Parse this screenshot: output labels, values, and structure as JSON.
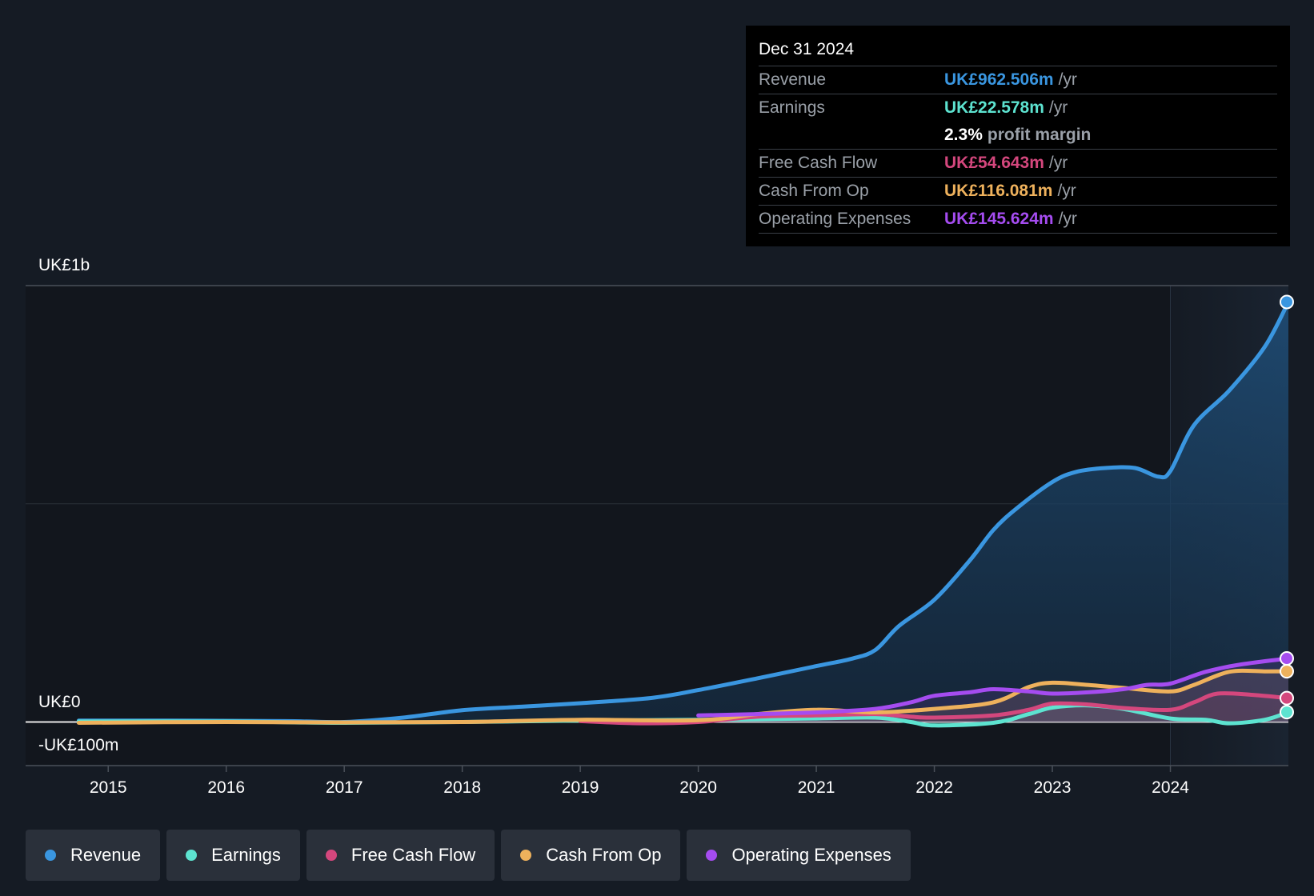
{
  "tooltip": {
    "date": "Dec 31 2024",
    "rows": [
      {
        "label": "Revenue",
        "value": "UK£962.506m",
        "unit": "/yr",
        "color": "#3a96e0"
      },
      {
        "label": "Earnings",
        "value": "UK£22.578m",
        "unit": "/yr",
        "color": "#5de3d0"
      },
      {
        "label": "",
        "value": "2.3%",
        "unit": "profit margin",
        "color": "#ffffff"
      },
      {
        "label": "Free Cash Flow",
        "value": "UK£54.643m",
        "unit": "/yr",
        "color": "#d4477d"
      },
      {
        "label": "Cash From Op",
        "value": "UK£116.081m",
        "unit": "/yr",
        "color": "#eeb15c"
      },
      {
        "label": "Operating Expenses",
        "value": "UK£145.624m",
        "unit": "/yr",
        "color": "#a54cf0"
      }
    ]
  },
  "legend": [
    {
      "label": "Revenue",
      "color": "#3a96e0"
    },
    {
      "label": "Earnings",
      "color": "#5de3d0"
    },
    {
      "label": "Free Cash Flow",
      "color": "#d4477d"
    },
    {
      "label": "Cash From Op",
      "color": "#eeb15c"
    },
    {
      "label": "Operating Expenses",
      "color": "#a54cf0"
    }
  ],
  "chart_data": {
    "type": "line",
    "title": "",
    "y_labels": {
      "top": "UK£1b",
      "zero": "UK£0",
      "bottom": "-UK£100m"
    },
    "ylim": [
      -100,
      1000
    ],
    "xlim": [
      2014.3,
      2025.0
    ],
    "highlight_from": 2024.0,
    "x_ticks": [
      2015,
      2016,
      2017,
      2018,
      2019,
      2020,
      2021,
      2022,
      2023,
      2024
    ],
    "series": [
      {
        "name": "Revenue",
        "color": "#3a96e0",
        "points": [
          [
            2014.75,
            3
          ],
          [
            2015.5,
            3
          ],
          [
            2016.5,
            2
          ],
          [
            2017.0,
            0
          ],
          [
            2017.5,
            10
          ],
          [
            2018.0,
            27
          ],
          [
            2018.5,
            35
          ],
          [
            2019.0,
            43
          ],
          [
            2019.6,
            55
          ],
          [
            2020.0,
            73
          ],
          [
            2020.5,
            100
          ],
          [
            2021.0,
            128
          ],
          [
            2021.3,
            145
          ],
          [
            2021.5,
            165
          ],
          [
            2021.7,
            220
          ],
          [
            2022.0,
            280
          ],
          [
            2022.3,
            370
          ],
          [
            2022.5,
            440
          ],
          [
            2022.7,
            490
          ],
          [
            2023.0,
            550
          ],
          [
            2023.2,
            573
          ],
          [
            2023.45,
            582
          ],
          [
            2023.7,
            582
          ],
          [
            2023.9,
            562
          ],
          [
            2024.0,
            575
          ],
          [
            2024.2,
            680
          ],
          [
            2024.5,
            760
          ],
          [
            2024.8,
            860
          ],
          [
            2025.0,
            962.5
          ]
        ]
      },
      {
        "name": "Earnings",
        "color": "#5de3d0",
        "points": [
          [
            2014.75,
            1
          ],
          [
            2016.0,
            1
          ],
          [
            2017.0,
            -2
          ],
          [
            2018.0,
            0
          ],
          [
            2019.0,
            3
          ],
          [
            2020.0,
            5
          ],
          [
            2021.0,
            8
          ],
          [
            2021.5,
            10
          ],
          [
            2021.8,
            0
          ],
          [
            2022.0,
            -8
          ],
          [
            2022.5,
            -2
          ],
          [
            2022.8,
            18
          ],
          [
            2023.0,
            33
          ],
          [
            2023.3,
            38
          ],
          [
            2023.6,
            30
          ],
          [
            2024.0,
            8
          ],
          [
            2024.3,
            5
          ],
          [
            2024.5,
            -3
          ],
          [
            2024.8,
            5
          ],
          [
            2025.0,
            22.6
          ]
        ]
      },
      {
        "name": "Free Cash Flow",
        "color": "#d4477d",
        "points": [
          [
            2019.0,
            2
          ],
          [
            2019.5,
            -3
          ],
          [
            2020.0,
            0
          ],
          [
            2020.5,
            12
          ],
          [
            2021.0,
            15
          ],
          [
            2021.5,
            18
          ],
          [
            2021.8,
            12
          ],
          [
            2022.0,
            10
          ],
          [
            2022.5,
            15
          ],
          [
            2022.8,
            28
          ],
          [
            2023.0,
            42
          ],
          [
            2023.3,
            40
          ],
          [
            2023.6,
            32
          ],
          [
            2024.0,
            28
          ],
          [
            2024.2,
            45
          ],
          [
            2024.4,
            65
          ],
          [
            2024.7,
            62
          ],
          [
            2025.0,
            54.6
          ]
        ]
      },
      {
        "name": "Cash From Op",
        "color": "#eeb15c",
        "points": [
          [
            2014.75,
            -2
          ],
          [
            2016.0,
            0
          ],
          [
            2017.0,
            -1
          ],
          [
            2018.0,
            0
          ],
          [
            2019.0,
            5
          ],
          [
            2020.0,
            4
          ],
          [
            2020.5,
            18
          ],
          [
            2021.0,
            28
          ],
          [
            2021.5,
            22
          ],
          [
            2022.0,
            30
          ],
          [
            2022.5,
            45
          ],
          [
            2022.8,
            80
          ],
          [
            2023.0,
            90
          ],
          [
            2023.3,
            85
          ],
          [
            2023.6,
            78
          ],
          [
            2024.0,
            70
          ],
          [
            2024.2,
            85
          ],
          [
            2024.5,
            115
          ],
          [
            2024.8,
            116
          ],
          [
            2025.0,
            116.1
          ]
        ]
      },
      {
        "name": "Operating Expenses",
        "color": "#a54cf0",
        "points": [
          [
            2020.0,
            15
          ],
          [
            2020.5,
            18
          ],
          [
            2021.0,
            22
          ],
          [
            2021.5,
            30
          ],
          [
            2021.8,
            45
          ],
          [
            2022.0,
            60
          ],
          [
            2022.3,
            68
          ],
          [
            2022.5,
            75
          ],
          [
            2022.8,
            70
          ],
          [
            2023.0,
            65
          ],
          [
            2023.3,
            68
          ],
          [
            2023.6,
            75
          ],
          [
            2023.8,
            85
          ],
          [
            2024.0,
            88
          ],
          [
            2024.3,
            115
          ],
          [
            2024.6,
            132
          ],
          [
            2025.0,
            145.6
          ]
        ]
      }
    ]
  }
}
